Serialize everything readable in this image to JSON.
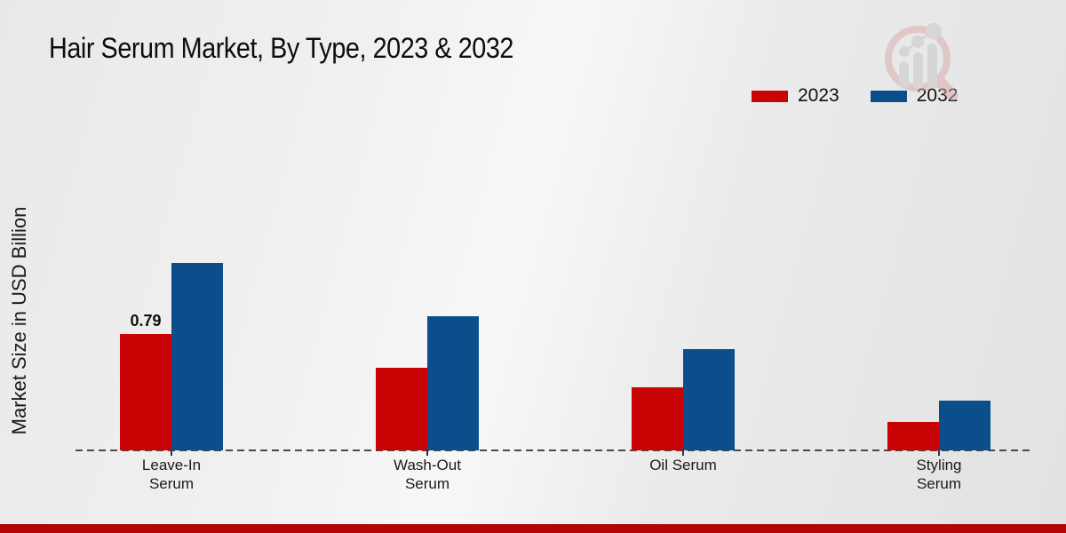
{
  "title": "Hair Serum Market, By Type, 2023 & 2032",
  "y_axis_label": "Market Size in USD Billion",
  "legend": {
    "items": [
      {
        "label": "2023",
        "color": "#c90404"
      },
      {
        "label": "2032",
        "color": "#0b4e8b"
      }
    ]
  },
  "watermark_icon": "magnifier-bar-chart-logo",
  "footer": {
    "bar_color": "#b30505"
  },
  "chart_data": {
    "type": "bar",
    "title": "Hair Serum Market, By Type, 2023 & 2032",
    "ylabel": "Market Size in USD Billion",
    "xlabel": "",
    "categories": [
      "Leave-In Serum",
      "Wash-Out Serum",
      "Oil Serum",
      "Styling Serum"
    ],
    "category_lines": [
      [
        "Leave-In",
        "Serum"
      ],
      [
        "Wash-Out",
        "Serum"
      ],
      [
        "Oil Serum"
      ],
      [
        "Styling",
        "Serum"
      ]
    ],
    "series": [
      {
        "name": "2023",
        "color": "#c90404",
        "values": [
          0.79,
          0.56,
          0.43,
          0.19
        ]
      },
      {
        "name": "2032",
        "color": "#0b4e8b",
        "values": [
          1.27,
          0.91,
          0.69,
          0.34
        ]
      }
    ],
    "bar_labels": [
      {
        "series": 0,
        "index": 0,
        "text": "0.79"
      }
    ],
    "ylim": [
      0,
      1.4
    ],
    "grid": false,
    "legend_position": "top-right",
    "baseline_style": "dashed"
  }
}
